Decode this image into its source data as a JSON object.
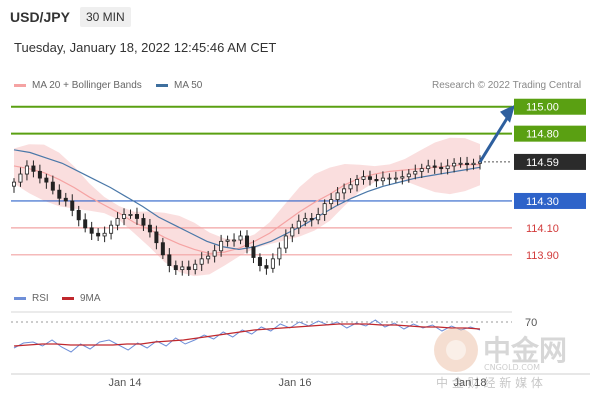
{
  "header": {
    "pair": "USD/JPY",
    "timeframe": "30 MIN"
  },
  "datetime": "Tuesday, January 18, 2022 12:45:46 AM CET",
  "legend": {
    "ma20_label": "MA 20 + Bollinger Bands",
    "ma50_label": "MA 50",
    "credit": "Research © 2022 Trading Central"
  },
  "rsi_legend": {
    "rsi_label": "RSI",
    "ma_label": "9MA"
  },
  "colors": {
    "bullish": "#3f9c35",
    "resistance_line": "#5aa012",
    "pivot_line": "#2e63c9",
    "support_line": "#f2a3a3",
    "bollinger_band": "#f8d3d3",
    "ma20": "#f5a3a3",
    "ma50": "#4a78a8",
    "candle": "#222222",
    "rsi": "#6f8fd8",
    "rsi_ma": "#c0282d",
    "arrow": "#2e5f9e"
  },
  "watermark": {
    "brand": "中金网",
    "domain": "CNGOLD.COM",
    "tagline": "中 金 财 经 新 媒 体"
  },
  "chart_data": {
    "type": "candlestick",
    "symbol": "USD/JPY",
    "interval": "30 MIN",
    "x_ticks": [
      "Jan 14",
      "Jan 16",
      "Jan 18"
    ],
    "ylim": [
      113.75,
      115.05
    ],
    "levels": [
      {
        "label": "115.00",
        "value": 115.0,
        "type": "resistance"
      },
      {
        "label": "114.80",
        "value": 114.8,
        "type": "resistance"
      },
      {
        "label": "114.59",
        "value": 114.59,
        "type": "last"
      },
      {
        "label": "114.30",
        "value": 114.3,
        "type": "pivot"
      },
      {
        "label": "114.10",
        "value": 114.1,
        "type": "support"
      },
      {
        "label": "113.90",
        "value": 113.9,
        "type": "support"
      }
    ],
    "target": {
      "from": 114.59,
      "to": 115.0,
      "direction": "bullish"
    },
    "close_series": [
      114.44,
      114.5,
      114.56,
      114.52,
      114.47,
      114.44,
      114.38,
      114.32,
      114.3,
      114.23,
      114.16,
      114.1,
      114.06,
      114.04,
      114.06,
      114.12,
      114.17,
      114.2,
      114.2,
      114.17,
      114.12,
      114.07,
      113.99,
      113.9,
      113.82,
      113.79,
      113.81,
      113.79,
      113.83,
      113.87,
      113.89,
      113.93,
      114.0,
      114.01,
      114.01,
      114.04,
      113.96,
      113.88,
      113.82,
      113.8,
      113.87,
      113.95,
      114.04,
      114.1,
      114.15,
      114.17,
      114.16,
      114.2,
      114.28,
      114.31,
      114.36,
      114.39,
      114.42,
      114.46,
      114.48,
      114.46,
      114.45,
      114.47,
      114.47,
      114.47,
      114.48,
      114.5,
      114.52,
      114.54,
      114.56,
      114.55,
      114.54,
      114.56,
      114.58,
      114.58,
      114.57,
      114.58,
      114.59
    ],
    "ma20_series": [
      114.56,
      114.54,
      114.51,
      114.46,
      114.4,
      114.33,
      114.27,
      114.21,
      114.14,
      114.09,
      114.03,
      113.98,
      113.94,
      113.91,
      113.92,
      113.95,
      114.0,
      114.06,
      114.14,
      114.22,
      114.29,
      114.35,
      114.42,
      114.47,
      114.5,
      114.52,
      114.53,
      114.54,
      114.55,
      114.56,
      114.57,
      114.57
    ],
    "ma50_series": [
      114.68,
      114.66,
      114.62,
      114.58,
      114.52,
      114.46,
      114.4,
      114.33,
      114.26,
      114.18,
      114.12,
      114.06,
      114.0,
      113.96,
      113.94,
      113.96,
      114.0,
      114.06,
      114.12,
      114.19,
      114.26,
      114.32,
      114.37,
      114.41,
      114.44,
      114.47,
      114.49,
      114.51,
      114.53,
      114.55
    ],
    "rsi": {
      "levels": [
        {
          "label": "70",
          "value": 70
        }
      ],
      "ylim": [
        20,
        80
      ],
      "rsi_series": [
        44,
        49,
        50,
        46,
        52,
        45,
        40,
        48,
        43,
        50,
        52,
        47,
        42,
        49,
        44,
        51,
        46,
        54,
        48,
        52,
        57,
        53,
        60,
        55,
        62,
        58,
        65,
        61,
        68,
        64,
        70,
        66,
        71,
        67,
        70,
        64,
        69,
        66,
        72,
        65,
        69,
        63,
        68,
        64,
        67,
        61,
        66,
        62,
        65,
        62
      ],
      "ma_series": [
        46,
        47,
        48,
        48,
        47,
        47,
        47,
        47,
        48,
        48,
        50,
        51,
        52,
        54,
        56,
        58,
        60,
        62,
        63,
        64,
        65,
        66,
        67,
        68,
        68,
        68,
        67,
        67,
        66,
        65,
        65,
        64,
        64,
        63
      ]
    }
  }
}
